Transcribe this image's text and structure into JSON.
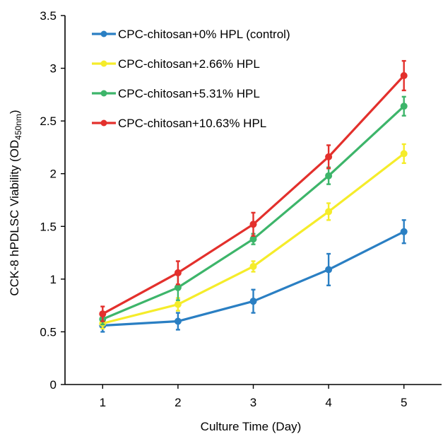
{
  "chart_data": {
    "type": "line",
    "xlabel": "Culture Time (Day)",
    "ylabel_main": "CCK-8 hPDLSC Viability (OD",
    "ylabel_sub": "450nm",
    "ylabel_close": ")",
    "x": [
      1,
      2,
      3,
      4,
      5
    ],
    "x_ticks": [
      "1",
      "2",
      "3",
      "4",
      "5"
    ],
    "y_ticks": [
      "0",
      "0.5",
      "1",
      "1.5",
      "2",
      "2.5",
      "3",
      "3.5"
    ],
    "xlim": [
      0.5,
      5.5
    ],
    "ylim": [
      0,
      3.5
    ],
    "grid": false,
    "legend_position": "top-left",
    "series": [
      {
        "name": "CPC-chitosan+0% HPL (control)",
        "color": "#2A7FC3",
        "values": [
          0.56,
          0.6,
          0.79,
          1.09,
          1.45
        ],
        "errors": [
          0.06,
          0.08,
          0.11,
          0.15,
          0.11
        ]
      },
      {
        "name": "CPC-chitosan+2.66% HPL",
        "color": "#F5EC2A",
        "values": [
          0.58,
          0.76,
          1.12,
          1.64,
          2.19
        ],
        "errors": [
          0.05,
          0.06,
          0.05,
          0.08,
          0.09
        ]
      },
      {
        "name": "CPC-chitosan+5.31% HPL",
        "color": "#3DB56A",
        "values": [
          0.62,
          0.92,
          1.38,
          1.98,
          2.64
        ],
        "errors": [
          0.05,
          0.12,
          0.05,
          0.08,
          0.09
        ]
      },
      {
        "name": "CPC-chitosan+10.63% HPL",
        "color": "#E3302C",
        "values": [
          0.67,
          1.06,
          1.52,
          2.16,
          2.93
        ],
        "errors": [
          0.07,
          0.11,
          0.11,
          0.11,
          0.14
        ]
      }
    ]
  }
}
